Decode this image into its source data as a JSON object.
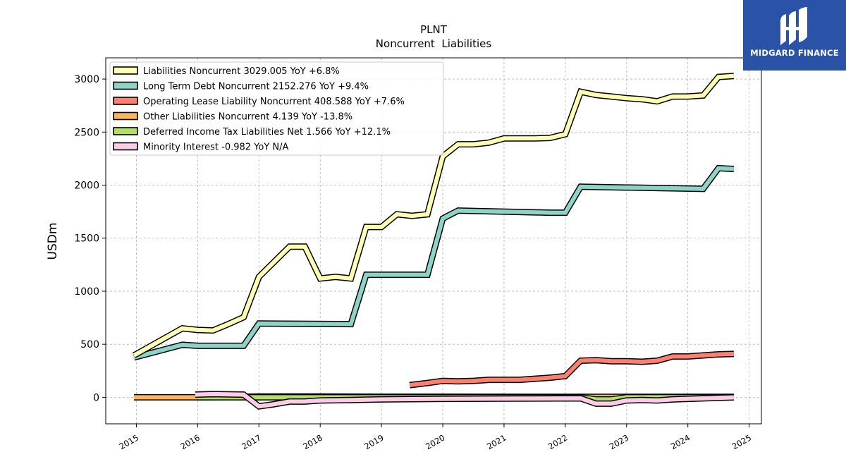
{
  "brand": {
    "name": "MIDGARD FINANCE",
    "color": "#2a52a6",
    "icon": "midgard-logo-icon"
  },
  "chart_data": {
    "type": "line",
    "title": "PLNT",
    "subtitle": "Noncurrent  Liabilities",
    "ylabel": "USDm",
    "xlabel": "",
    "ylim": [
      -250,
      3200
    ],
    "xlim": [
      2014.5,
      2025.2
    ],
    "yticks": [
      0,
      500,
      1000,
      1500,
      2000,
      2500,
      3000
    ],
    "xticks": [
      2015,
      2016,
      2017,
      2018,
      2019,
      2020,
      2021,
      2022,
      2023,
      2024,
      2025
    ],
    "grid": true,
    "legend_position": "top-left",
    "series": [
      {
        "name": "Liabilities Noncurrent",
        "legend": "Liabilities Noncurrent  3029.005 YoY +6.8%",
        "color": "#ffffb3",
        "points": [
          [
            2014.96,
            395
          ],
          [
            2015.75,
            650
          ],
          [
            2016.0,
            635
          ],
          [
            2016.25,
            630
          ],
          [
            2016.5,
            690
          ],
          [
            2016.75,
            755
          ],
          [
            2017.0,
            1135
          ],
          [
            2017.5,
            1420
          ],
          [
            2017.75,
            1420
          ],
          [
            2018.0,
            1120
          ],
          [
            2018.25,
            1135
          ],
          [
            2018.5,
            1120
          ],
          [
            2018.75,
            1605
          ],
          [
            2019.0,
            1605
          ],
          [
            2019.25,
            1725
          ],
          [
            2019.5,
            1710
          ],
          [
            2019.75,
            1725
          ],
          [
            2020.0,
            2270
          ],
          [
            2020.25,
            2385
          ],
          [
            2020.5,
            2385
          ],
          [
            2020.75,
            2400
          ],
          [
            2021.0,
            2440
          ],
          [
            2021.25,
            2440
          ],
          [
            2021.5,
            2440
          ],
          [
            2021.75,
            2445
          ],
          [
            2022.0,
            2480
          ],
          [
            2022.25,
            2880
          ],
          [
            2022.5,
            2850
          ],
          [
            2022.75,
            2835
          ],
          [
            2023.0,
            2820
          ],
          [
            2023.25,
            2810
          ],
          [
            2023.5,
            2790
          ],
          [
            2023.75,
            2835
          ],
          [
            2024.0,
            2835
          ],
          [
            2024.25,
            2845
          ],
          [
            2024.5,
            3020
          ],
          [
            2024.75,
            3029.005
          ]
        ]
      },
      {
        "name": "Long Term Debt Noncurrent",
        "legend": "Long Term Debt Noncurrent  2152.276 YoY +9.4%",
        "color": "#8dd3c7",
        "points": [
          [
            2014.96,
            375
          ],
          [
            2015.75,
            495
          ],
          [
            2016.0,
            485
          ],
          [
            2016.75,
            485
          ],
          [
            2017.0,
            695
          ],
          [
            2018.5,
            690
          ],
          [
            2018.75,
            1155
          ],
          [
            2019.75,
            1155
          ],
          [
            2020.0,
            1685
          ],
          [
            2020.25,
            1760
          ],
          [
            2021.75,
            1740
          ],
          [
            2022.0,
            1740
          ],
          [
            2022.25,
            1985
          ],
          [
            2024.25,
            1965
          ],
          [
            2024.5,
            2160
          ],
          [
            2024.75,
            2152.276
          ]
        ]
      },
      {
        "name": "Operating Lease Liability Noncurrent",
        "legend": "Operating Lease Liability Noncurrent  408.588 YoY +7.6%",
        "color": "#fb8072",
        "points": [
          [
            2019.46,
            115
          ],
          [
            2019.75,
            135
          ],
          [
            2020.0,
            155
          ],
          [
            2020.25,
            150
          ],
          [
            2020.5,
            155
          ],
          [
            2020.75,
            165
          ],
          [
            2021.0,
            165
          ],
          [
            2021.25,
            165
          ],
          [
            2021.5,
            175
          ],
          [
            2021.75,
            185
          ],
          [
            2022.0,
            200
          ],
          [
            2022.25,
            345
          ],
          [
            2022.5,
            350
          ],
          [
            2022.75,
            340
          ],
          [
            2023.0,
            340
          ],
          [
            2023.25,
            335
          ],
          [
            2023.5,
            345
          ],
          [
            2023.75,
            385
          ],
          [
            2024.0,
            385
          ],
          [
            2024.25,
            395
          ],
          [
            2024.5,
            405
          ],
          [
            2024.75,
            408.588
          ]
        ]
      },
      {
        "name": "Other Liabilities Noncurrent",
        "legend": "Other Liabilities Noncurrent  4.139 YoY -13.8%",
        "color": "#fdb462",
        "points": [
          [
            2014.96,
            0
          ],
          [
            2016.0,
            0
          ],
          [
            2016.75,
            5
          ],
          [
            2017.0,
            8
          ],
          [
            2018.0,
            8
          ],
          [
            2019.0,
            5
          ],
          [
            2024.75,
            4.139
          ]
        ]
      },
      {
        "name": "Deferred Income Tax Liabilities Net",
        "legend": "Deferred Income Tax Liabilities Net  1.566 YoY +12.1%",
        "color": "#b3de69",
        "points": [
          [
            2016.0,
            0
          ],
          [
            2022.25,
            0
          ],
          [
            2022.5,
            -20
          ],
          [
            2022.75,
            -20
          ],
          [
            2023.0,
            0
          ],
          [
            2024.75,
            1.566
          ]
        ]
      },
      {
        "name": "Minority Interest",
        "legend": "Minority Interest  -0.982 YoY N/A",
        "color": "#fccde5",
        "points": [
          [
            2015.96,
            25
          ],
          [
            2016.25,
            30
          ],
          [
            2016.75,
            25
          ],
          [
            2017.0,
            -85
          ],
          [
            2017.25,
            -65
          ],
          [
            2017.5,
            -40
          ],
          [
            2017.75,
            -40
          ],
          [
            2018.0,
            -30
          ],
          [
            2018.5,
            -25
          ],
          [
            2019.0,
            -20
          ],
          [
            2020.0,
            -15
          ],
          [
            2021.0,
            -12
          ],
          [
            2022.25,
            -10
          ],
          [
            2022.5,
            -60
          ],
          [
            2022.75,
            -60
          ],
          [
            2023.0,
            -30
          ],
          [
            2023.25,
            -25
          ],
          [
            2023.5,
            -30
          ],
          [
            2023.75,
            -20
          ],
          [
            2024.0,
            -15
          ],
          [
            2024.75,
            -0.982
          ]
        ]
      }
    ]
  }
}
